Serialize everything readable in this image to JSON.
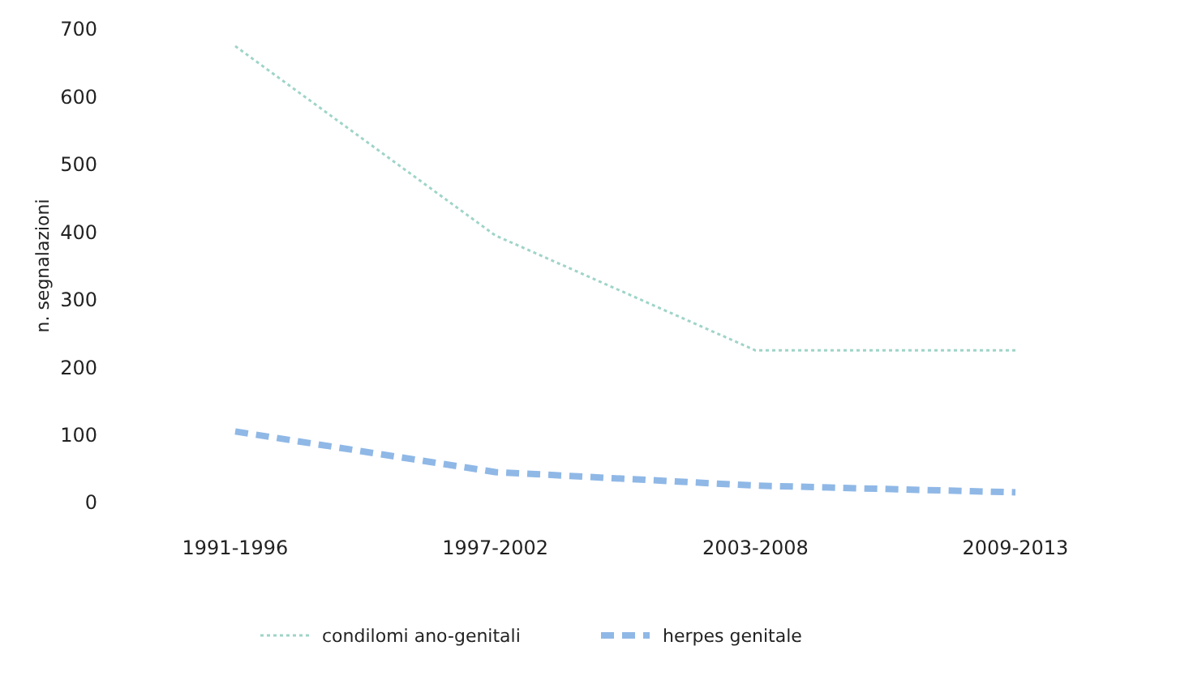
{
  "chart_data": {
    "type": "line",
    "ylabel": "n. segnalazioni",
    "categories": [
      "1991-1996",
      "1997-2002",
      "2003-2008",
      "2009-2013"
    ],
    "series": [
      {
        "name": "condilomi ano-genitali",
        "color": "#9fd4c8",
        "values": [
          675,
          395,
          225,
          225
        ],
        "line_style": "dotted"
      },
      {
        "name": "herpes genitale",
        "color": "#8fb8e6",
        "values": [
          105,
          45,
          25,
          15
        ],
        "line_style": "dashed"
      }
    ],
    "ylim": [
      0,
      700
    ],
    "yticks": [
      0,
      100,
      200,
      300,
      400,
      500,
      600,
      700
    ],
    "grid": false,
    "legend": "bottom",
    "marker": "none"
  }
}
